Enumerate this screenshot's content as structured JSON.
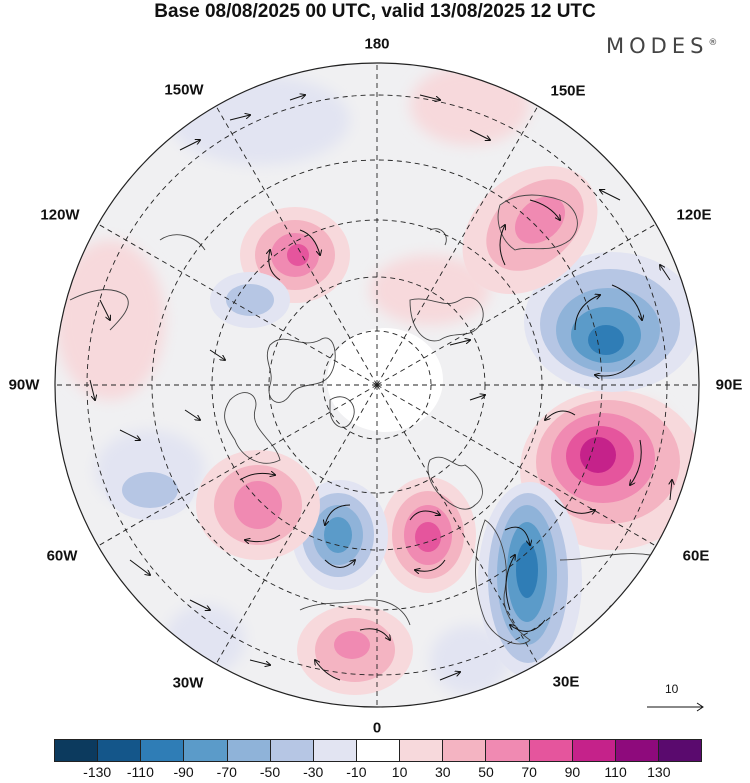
{
  "title": "Base 08/08/2025 00 UTC, valid 13/08/2025 12 UTC",
  "brand": {
    "name": "MODES",
    "mark": "®"
  },
  "longitude_labels": {
    "lon_180": "180",
    "lon_150e": "150E",
    "lon_120e": "120E",
    "lon_90e": "90E",
    "lon_60e": "60E",
    "lon_30e": "30E",
    "lon_0": "0",
    "lon_30w": "30W",
    "lon_60w": "60W",
    "lon_90w": "90W",
    "lon_120w": "120W",
    "lon_150w": "150W"
  },
  "reference_vector": {
    "label": "10",
    "icon": "arrow-right-icon"
  },
  "colorbar": {
    "colors": [
      "#0c3a5e",
      "#14568a",
      "#2f7db6",
      "#5b9bc9",
      "#8fb3d9",
      "#b6c6e4",
      "#e2e4f2",
      "#ffffff",
      "#f7d9dc",
      "#f4b4c2",
      "#f08ab2",
      "#e5559d",
      "#c5228a",
      "#8e0a7c",
      "#5a0a6e"
    ],
    "tick_labels": [
      "-130",
      "-110",
      "-90",
      "-70",
      "-50",
      "-30",
      "-10",
      "10",
      "30",
      "50",
      "70",
      "90",
      "110",
      "130"
    ]
  },
  "anomaly_centers": [
    {
      "name": "positive-center-135E",
      "value": 90,
      "color": "#c5228a"
    },
    {
      "name": "negative-center-100E",
      "value": -90,
      "color": "#2f7db6"
    },
    {
      "name": "negative-center-30E",
      "value": -90,
      "color": "#2f7db6"
    },
    {
      "name": "positive-center-10E",
      "value": 70,
      "color": "#e5559d"
    },
    {
      "name": "negative-center-20W",
      "value": -70,
      "color": "#5b9bc9"
    },
    {
      "name": "positive-center-45W",
      "value": 50,
      "color": "#f08ab2"
    },
    {
      "name": "positive-center-5W",
      "value": 50,
      "color": "#f08ab2"
    },
    {
      "name": "positive-center-150E",
      "value": 50,
      "color": "#f08ab2"
    },
    {
      "name": "positive-center-170W",
      "value": 70,
      "color": "#e5559d"
    },
    {
      "name": "negative-center-150W",
      "value": -30,
      "color": "#b6c6e4"
    },
    {
      "name": "negative-center-60W",
      "value": -30,
      "color": "#b6c6e4"
    }
  ]
}
